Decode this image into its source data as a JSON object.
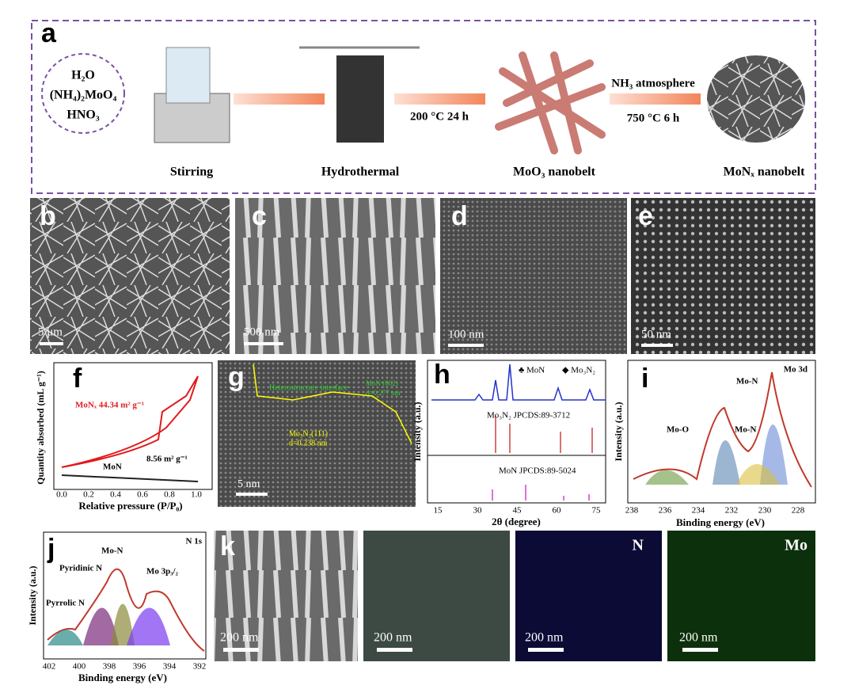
{
  "panel_a": {
    "label": "a",
    "reagents": [
      "H₂O",
      "(NH₄)₂MoO₄",
      "HNO₃"
    ],
    "conditions": [
      "200 °C 24 h",
      "NH₃ atmosphere",
      "750 °C 6 h"
    ],
    "steps": [
      "Stirring",
      "Hydrothermal",
      "MoO₃ nanobelt",
      "MoNₓ nanobelt"
    ]
  },
  "panel_b": {
    "label": "b",
    "scale": "5 μm"
  },
  "panel_c": {
    "label": "c",
    "scale": "500 nm"
  },
  "panel_d": {
    "label": "d",
    "scale": "100 nm"
  },
  "panel_e": {
    "label": "e",
    "scale": "50 nm"
  },
  "panel_f": {
    "label": "f",
    "y_label": "Quantity absorbed (mL g⁻¹)",
    "x_label": "Relative pressure (P/P₀)",
    "xticks": [
      "0.0",
      "0.2",
      "0.4",
      "0.6",
      "0.8",
      "1.0"
    ],
    "annotations": [
      "MoNₓ  44.34 m² g⁻¹",
      "MoN",
      "8.56 m² g⁻¹"
    ]
  },
  "panel_g": {
    "label": "g",
    "annotations": [
      "Heterostructure interface",
      "MoN (002)",
      "d=0.277 nm",
      "Mo₃N₂(111)",
      "d=0.238 nm"
    ],
    "scale": "5 nm"
  },
  "panel_h": {
    "label": "h",
    "legend": [
      "♣ MoN",
      "◆ Mo₃N₂"
    ],
    "references": [
      "Mo₃N₂ JPCDS:89-3712",
      "MoN JPCDS:89-5024"
    ],
    "y_label": "Intensity (a.u.)",
    "x_label": "2θ (degree)",
    "xticks": [
      "15",
      "30",
      "45",
      "60",
      "75"
    ]
  },
  "panel_i": {
    "label": "i",
    "title": "Mo 3d",
    "annotations": [
      "Mo-N",
      "Mo-O",
      "Mo-N"
    ],
    "y_label": "Intensity (a.u.)",
    "x_label": "Binding energy (eV)",
    "xticks": [
      "238",
      "236",
      "234",
      "232",
      "230",
      "228"
    ]
  },
  "panel_j": {
    "label": "j",
    "title": "N 1s",
    "annotations": [
      "Pyridinic N",
      "Mo-N",
      "Mo 3p₃/₂",
      "Pyrrolic N"
    ],
    "y_label": "Intensity (a.u.)",
    "x_label": "Binding energy (eV)",
    "xticks": [
      "402",
      "400",
      "398",
      "396",
      "394",
      "392"
    ]
  },
  "panel_k": {
    "label": "k",
    "scales": [
      "200 nm",
      "200 nm",
      "200 nm",
      "200 nm"
    ],
    "elements": [
      "N",
      "Mo"
    ]
  }
}
